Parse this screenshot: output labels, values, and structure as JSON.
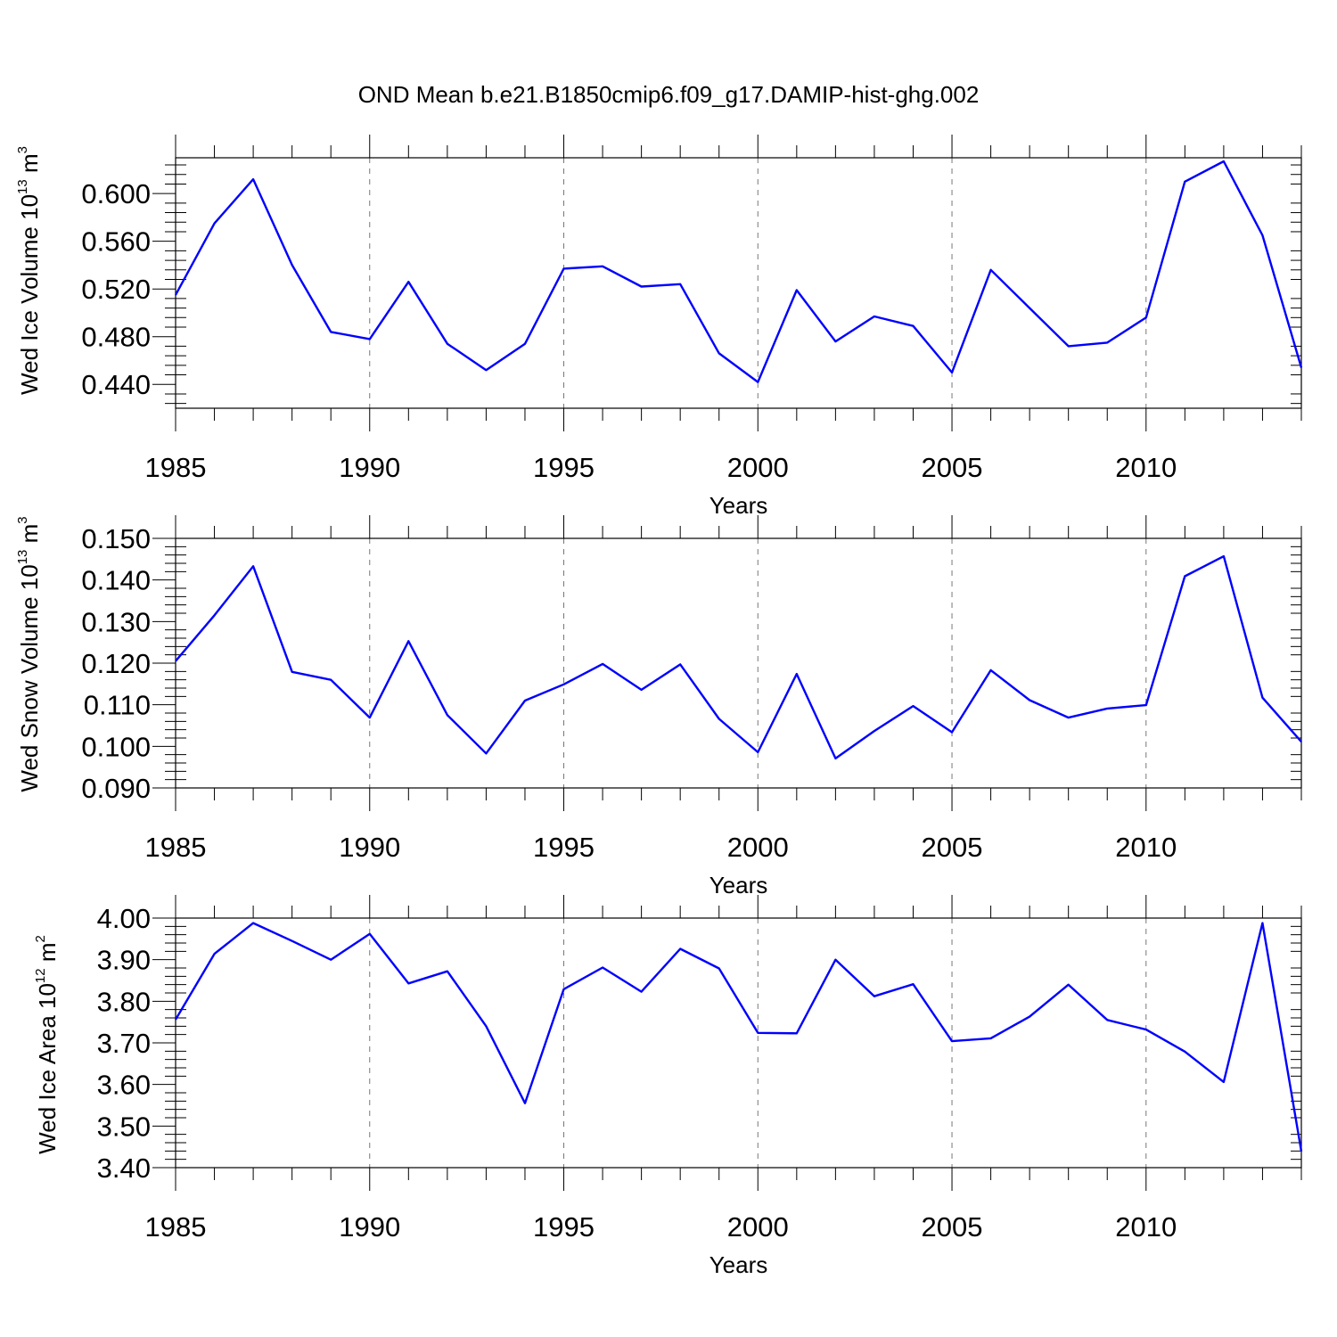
{
  "figure": {
    "title": "OND Mean b.e21.B1850cmip6.f09_g17.DAMIP-hist-ghg.002",
    "line_color": "#0000ff",
    "grid_color": "#777777"
  },
  "chart_data": [
    {
      "type": "line",
      "ylabel_main": "Wed Ice Volume 10",
      "ylabel_exp": "13",
      "ylabel_unit": " m",
      "ylabel_unit_exp": "3",
      "xlabel": "Years",
      "xlim": [
        1985,
        2014
      ],
      "ylim": [
        0.42,
        0.63
      ],
      "yticks": [
        0.44,
        0.48,
        0.52,
        0.56,
        0.6
      ],
      "ytick_labels": [
        "0.440",
        "0.480",
        "0.520",
        "0.560",
        "0.600"
      ],
      "xticks": [
        1985,
        1990,
        1995,
        2000,
        2005,
        2010
      ],
      "xtick_labels": [
        "1985",
        "1990",
        "1995",
        "2000",
        "2005",
        "2010"
      ],
      "x": [
        1985,
        1986,
        1987,
        1988,
        1989,
        1990,
        1991,
        1992,
        1993,
        1994,
        1995,
        1996,
        1997,
        1998,
        1999,
        2000,
        2001,
        2002,
        2003,
        2004,
        2005,
        2006,
        2007,
        2008,
        2009,
        2010,
        2011,
        2012,
        2013,
        2014
      ],
      "series": [
        {
          "name": "Wed Ice Volume",
          "values": [
            0.515,
            0.575,
            0.612,
            0.54,
            0.484,
            0.478,
            0.526,
            0.474,
            0.452,
            0.474,
            0.537,
            0.539,
            0.522,
            0.524,
            0.466,
            0.442,
            0.519,
            0.476,
            0.497,
            0.489,
            0.45,
            0.536,
            0.504,
            0.472,
            0.475,
            0.496,
            0.61,
            0.627,
            0.565,
            0.454
          ]
        }
      ]
    },
    {
      "type": "line",
      "ylabel_main": "Wed Snow Volume 10",
      "ylabel_exp": "13",
      "ylabel_unit": " m",
      "ylabel_unit_exp": "3",
      "xlabel": "Years",
      "xlim": [
        1985,
        2014
      ],
      "ylim": [
        0.09,
        0.15
      ],
      "yticks": [
        0.09,
        0.1,
        0.11,
        0.12,
        0.13,
        0.14,
        0.15
      ],
      "ytick_labels": [
        "0.090",
        "0.100",
        "0.110",
        "0.120",
        "0.130",
        "0.140",
        "0.150"
      ],
      "xticks": [
        1985,
        1990,
        1995,
        2000,
        2005,
        2010
      ],
      "xtick_labels": [
        "1985",
        "1990",
        "1995",
        "2000",
        "2005",
        "2010"
      ],
      "x": [
        1985,
        1986,
        1987,
        1988,
        1989,
        1990,
        1991,
        1992,
        1993,
        1994,
        1995,
        1996,
        1997,
        1998,
        1999,
        2000,
        2001,
        2002,
        2003,
        2004,
        2005,
        2006,
        2007,
        2008,
        2009,
        2010,
        2011,
        2012,
        2013,
        2014
      ],
      "series": [
        {
          "name": "Wed Snow Volume",
          "values": [
            0.1205,
            0.1315,
            0.1433,
            0.1179,
            0.116,
            0.1069,
            0.1253,
            0.1075,
            0.0983,
            0.111,
            0.1149,
            0.1198,
            0.1136,
            0.1197,
            0.1066,
            0.0986,
            0.1174,
            0.0971,
            0.1037,
            0.1097,
            0.1034,
            0.1183,
            0.1111,
            0.1069,
            0.1091,
            0.1099,
            0.1409,
            0.1457,
            0.1117,
            0.1011
          ]
        }
      ]
    },
    {
      "type": "line",
      "ylabel_main": "Wed Ice Area 10",
      "ylabel_exp": "12",
      "ylabel_unit": " m",
      "ylabel_unit_exp": "2",
      "xlabel": "Years",
      "xlim": [
        1985,
        2014
      ],
      "ylim": [
        3.4,
        4.0
      ],
      "yticks": [
        3.4,
        3.5,
        3.6,
        3.7,
        3.8,
        3.9,
        4.0
      ],
      "ytick_labels": [
        "3.40",
        "3.50",
        "3.60",
        "3.70",
        "3.80",
        "3.90",
        "4.00"
      ],
      "xticks": [
        1985,
        1990,
        1995,
        2000,
        2005,
        2010
      ],
      "xtick_labels": [
        "1985",
        "1990",
        "1995",
        "2000",
        "2005",
        "2010"
      ],
      "x": [
        1985,
        1986,
        1987,
        1988,
        1989,
        1990,
        1991,
        1992,
        1993,
        1994,
        1995,
        1996,
        1997,
        1998,
        1999,
        2000,
        2001,
        2002,
        2003,
        2004,
        2005,
        2006,
        2007,
        2008,
        2009,
        2010,
        2011,
        2012,
        2013,
        2014
      ],
      "series": [
        {
          "name": "Wed Ice Area",
          "values": [
            3.756,
            3.914,
            3.988,
            3.945,
            3.9,
            3.962,
            3.843,
            3.872,
            3.74,
            3.555,
            3.829,
            3.881,
            3.823,
            3.926,
            3.879,
            3.724,
            3.723,
            3.9,
            3.812,
            3.841,
            3.704,
            3.711,
            3.763,
            3.84,
            3.755,
            3.732,
            3.679,
            3.606,
            3.988,
            3.439
          ]
        }
      ]
    }
  ]
}
